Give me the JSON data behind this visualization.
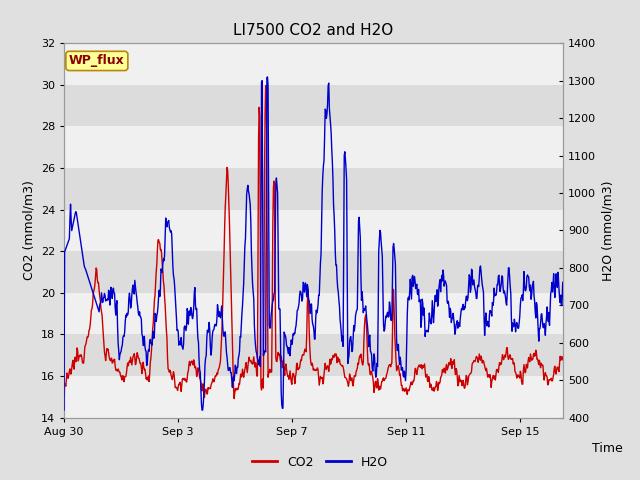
{
  "title": "LI7500 CO2 and H2O",
  "xlabel": "Time",
  "ylabel_left": "CO2 (mmol/m3)",
  "ylabel_right": "H2O (mmol/m3)",
  "co2_ylim": [
    14,
    32
  ],
  "h2o_ylim": [
    400,
    1400
  ],
  "co2_yticks": [
    14,
    16,
    18,
    20,
    22,
    24,
    26,
    28,
    30,
    32
  ],
  "h2o_yticks": [
    400,
    500,
    600,
    700,
    800,
    900,
    1000,
    1100,
    1200,
    1300,
    1400
  ],
  "background_color": "#e0e0e0",
  "plot_bg_color": "#f5f5f5",
  "band_color_light": "#f0f0f0",
  "band_color_dark": "#dcdcdc",
  "co2_color": "#cc0000",
  "h2o_color": "#0000cc",
  "line_width": 1.0,
  "title_fontsize": 11,
  "label_fontsize": 9,
  "tick_fontsize": 8,
  "legend_fontsize": 9,
  "watermark_text": "WP_flux",
  "watermark_color": "#8b0000",
  "watermark_bg": "#ffff99",
  "watermark_border": "#b8860b",
  "xtick_labels": [
    "Aug 30",
    "Sep 3",
    "Sep 7",
    "Sep 11",
    "Sep 15"
  ],
  "xtick_days": [
    0,
    4,
    8,
    12,
    16
  ],
  "xlim": [
    0,
    17.5
  ]
}
